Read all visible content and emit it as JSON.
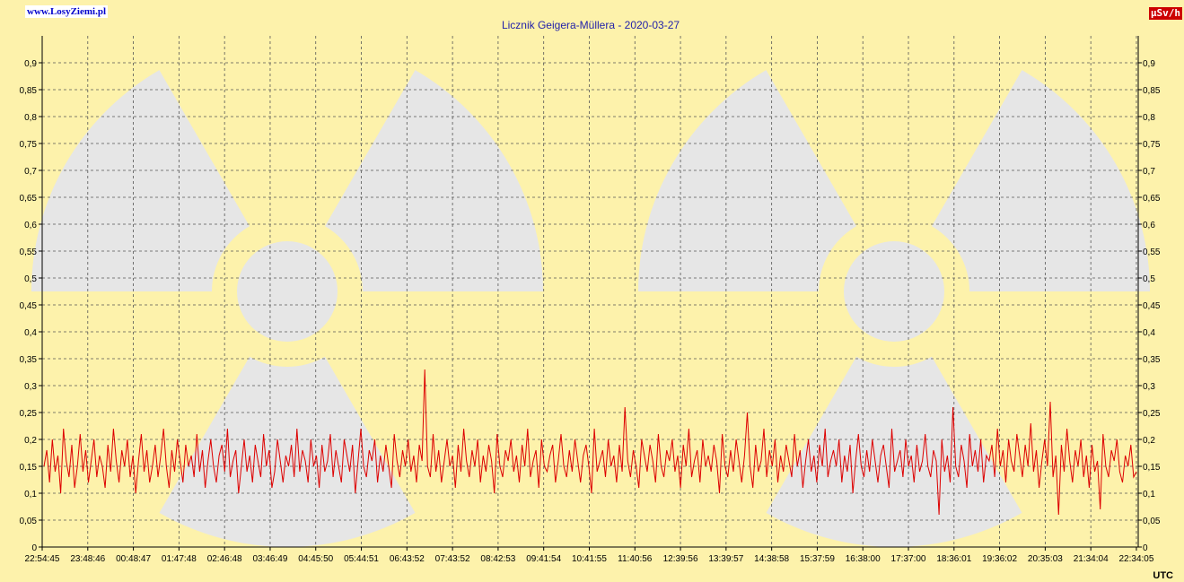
{
  "header": {
    "site_link": "www.LosyZiemi.pl",
    "unit_badge": "µSv/h",
    "timezone": "UTC"
  },
  "colors": {
    "background": "#fdf2ab",
    "series": "#dd0000",
    "grid": "#555555",
    "watermark": "#e6e6e6",
    "title": "#2222aa"
  },
  "chart_data": {
    "type": "line",
    "title": "Licznik Geigera-Müllera - 2020-03-27",
    "xlabel": "",
    "ylabel": "µSv/h",
    "ylim": [
      0,
      0.9
    ],
    "y_ticks": [
      "0",
      "0,05",
      "0,1",
      "0,15",
      "0,2",
      "0,25",
      "0,3",
      "0,35",
      "0,4",
      "0,45",
      "0,5",
      "0,55",
      "0,6",
      "0,65",
      "0,7",
      "0,75",
      "0,8",
      "0,85",
      "0,9"
    ],
    "x_ticks": [
      "22:54:45",
      "23:48:46",
      "00:48:47",
      "01:47:48",
      "02:46:48",
      "03:46:49",
      "04:45:50",
      "05:44:51",
      "06:43:52",
      "07:43:52",
      "08:42:53",
      "09:41:54",
      "10:41:55",
      "11:40:56",
      "12:39:56",
      "13:39:57",
      "14:38:58",
      "15:37:59",
      "16:38:00",
      "17:37:00",
      "18:36:01",
      "19:36:02",
      "20:35:03",
      "21:34:04",
      "22:34:05"
    ],
    "grid": true,
    "watermark": "radiation-trefoil",
    "series": [
      {
        "values": [
          0.15,
          0.18,
          0.12,
          0.2,
          0.14,
          0.17,
          0.1,
          0.22,
          0.16,
          0.13,
          0.19,
          0.11,
          0.15,
          0.21,
          0.14,
          0.18,
          0.12,
          0.16,
          0.2,
          0.13,
          0.17,
          0.15,
          0.11,
          0.19,
          0.14,
          0.22,
          0.16,
          0.12,
          0.18,
          0.15,
          0.2,
          0.13,
          0.17,
          0.1,
          0.16,
          0.21,
          0.14,
          0.18,
          0.12,
          0.15,
          0.19,
          0.13,
          0.17,
          0.22,
          0.15,
          0.11,
          0.18,
          0.14,
          0.2,
          0.16,
          0.12,
          0.19,
          0.15,
          0.17,
          0.13,
          0.21,
          0.14,
          0.18,
          0.11,
          0.16,
          0.2,
          0.15,
          0.12,
          0.17,
          0.19,
          0.14,
          0.22,
          0.13,
          0.16,
          0.18,
          0.1,
          0.15,
          0.2,
          0.14,
          0.17,
          0.12,
          0.19,
          0.16,
          0.13,
          0.21,
          0.15,
          0.18,
          0.11,
          0.14,
          0.2,
          0.16,
          0.12,
          0.17,
          0.15,
          0.19,
          0.13,
          0.22,
          0.14,
          0.18,
          0.16,
          0.12,
          0.2,
          0.15,
          0.17,
          0.11,
          0.19,
          0.14,
          0.16,
          0.21,
          0.13,
          0.18,
          0.15,
          0.12,
          0.2,
          0.17,
          0.14,
          0.19,
          0.1,
          0.16,
          0.22,
          0.15,
          0.13,
          0.18,
          0.16,
          0.2,
          0.12,
          0.17,
          0.14,
          0.19,
          0.15,
          0.11,
          0.21,
          0.16,
          0.13,
          0.18,
          0.15,
          0.2,
          0.14,
          0.17,
          0.12,
          0.19,
          0.16,
          0.33,
          0.15,
          0.13,
          0.21,
          0.14,
          0.18,
          0.12,
          0.16,
          0.2,
          0.15,
          0.17,
          0.11,
          0.19,
          0.14,
          0.22,
          0.16,
          0.13,
          0.18,
          0.15,
          0.2,
          0.12,
          0.17,
          0.14,
          0.19,
          0.16,
          0.1,
          0.21,
          0.15,
          0.13,
          0.18,
          0.16,
          0.2,
          0.14,
          0.17,
          0.12,
          0.19,
          0.15,
          0.22,
          0.13,
          0.16,
          0.18,
          0.11,
          0.2,
          0.15,
          0.14,
          0.17,
          0.19,
          0.12,
          0.16,
          0.21,
          0.15,
          0.13,
          0.18,
          0.14,
          0.2,
          0.16,
          0.12,
          0.17,
          0.19,
          0.15,
          0.1,
          0.22,
          0.14,
          0.16,
          0.18,
          0.13,
          0.2,
          0.15,
          0.17,
          0.12,
          0.19,
          0.14,
          0.26,
          0.16,
          0.13,
          0.18,
          0.15,
          0.11,
          0.2,
          0.17,
          0.14,
          0.19,
          0.16,
          0.12,
          0.21,
          0.15,
          0.13,
          0.18,
          0.16,
          0.2,
          0.14,
          0.17,
          0.11,
          0.19,
          0.15,
          0.22,
          0.13,
          0.16,
          0.18,
          0.12,
          0.2,
          0.15,
          0.17,
          0.14,
          0.19,
          0.16,
          0.1,
          0.21,
          0.15,
          0.13,
          0.18,
          0.14,
          0.2,
          0.16,
          0.12,
          0.17,
          0.25,
          0.15,
          0.11,
          0.19,
          0.14,
          0.16,
          0.22,
          0.13,
          0.18,
          0.15,
          0.2,
          0.12,
          0.17,
          0.14,
          0.19,
          0.16,
          0.13,
          0.21,
          0.15,
          0.18,
          0.11,
          0.16,
          0.2,
          0.14,
          0.17,
          0.12,
          0.19,
          0.15,
          0.22,
          0.13,
          0.16,
          0.18,
          0.15,
          0.2,
          0.12,
          0.17,
          0.14,
          0.19,
          0.1,
          0.16,
          0.21,
          0.15,
          0.13,
          0.18,
          0.14,
          0.2,
          0.16,
          0.12,
          0.17,
          0.19,
          0.15,
          0.11,
          0.22,
          0.14,
          0.16,
          0.18,
          0.13,
          0.2,
          0.15,
          0.17,
          0.12,
          0.19,
          0.14,
          0.16,
          0.21,
          0.15,
          0.13,
          0.18,
          0.16,
          0.06,
          0.2,
          0.14,
          0.17,
          0.12,
          0.26,
          0.15,
          0.13,
          0.19,
          0.16,
          0.11,
          0.21,
          0.15,
          0.18,
          0.14,
          0.2,
          0.12,
          0.17,
          0.16,
          0.19,
          0.13,
          0.22,
          0.15,
          0.18,
          0.12,
          0.2,
          0.16,
          0.14,
          0.21,
          0.17,
          0.13,
          0.19,
          0.15,
          0.23,
          0.14,
          0.18,
          0.11,
          0.16,
          0.2,
          0.15,
          0.27,
          0.13,
          0.17,
          0.06,
          0.19,
          0.14,
          0.22,
          0.16,
          0.12,
          0.18,
          0.15,
          0.2,
          0.13,
          0.17,
          0.11,
          0.19,
          0.14,
          0.16,
          0.07,
          0.21,
          0.15,
          0.13,
          0.18,
          0.16,
          0.2,
          0.14,
          0.12,
          0.17,
          0.15,
          0.19,
          0.13,
          0.14
        ]
      }
    ]
  }
}
